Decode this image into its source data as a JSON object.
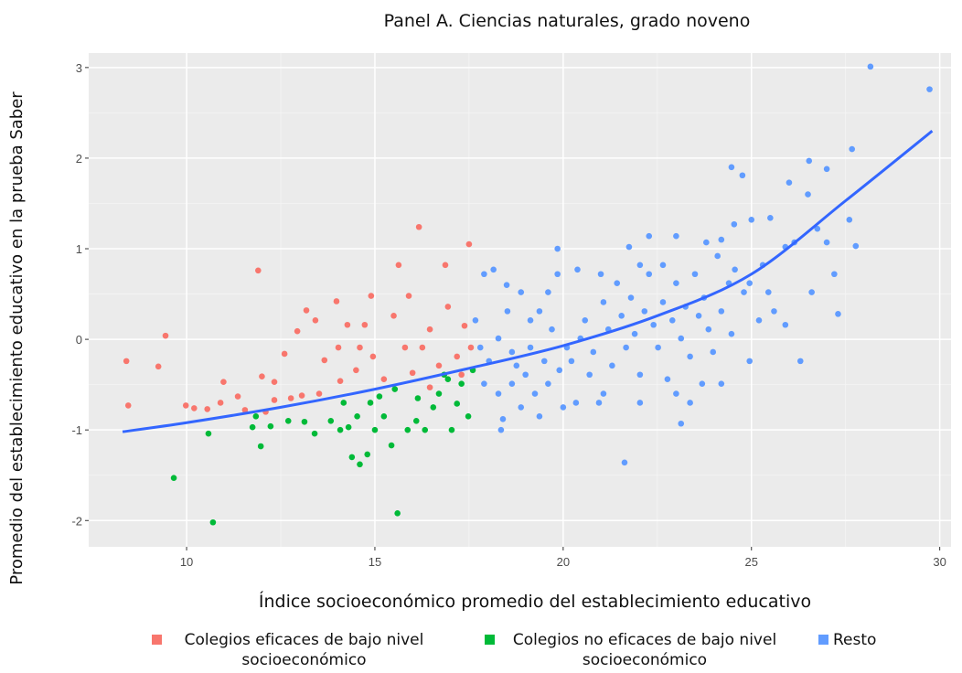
{
  "chart_data": {
    "type": "scatter",
    "title": "Panel A. Ciencias naturales, grado noveno",
    "x_label": "Índice socioeconómico promedio del establecimiento educativo",
    "y_label": "Promedio del establecimiento educativo en la prueba Saber",
    "xlim": [
      7.4,
      30.3
    ],
    "ylim": [
      -2.29,
      3.16
    ],
    "xticks": [
      10,
      15,
      20,
      25,
      30
    ],
    "yticks": [
      -2,
      -1,
      0,
      1,
      2,
      3
    ],
    "grid": true,
    "series": [
      {
        "name": "Colegios eficaces de bajo nivel socioeconómico",
        "color": "#f8766d",
        "x": [
          8.4,
          8.45,
          9.44,
          9.25,
          9.98,
          10.2,
          10.55,
          10.9,
          10.98,
          11.9,
          11.36,
          12.0,
          12.33,
          12.77,
          12.6,
          12.94,
          13.18,
          13.42,
          13.66,
          13.98,
          14.03,
          14.27,
          14.5,
          14.6,
          14.9,
          14.95,
          15.24,
          15.5,
          15.63,
          15.9,
          16.17,
          16.26,
          16.46,
          16.7,
          16.87,
          16.94,
          17.18,
          17.38,
          17.5,
          17.55,
          13.06,
          13.52,
          14.08,
          12.33,
          12.1,
          11.55,
          14.73,
          15.8,
          16.0,
          16.46,
          17.3
        ],
        "y": [
          -0.24,
          -0.73,
          0.04,
          -0.3,
          -0.73,
          -0.76,
          -0.77,
          -0.7,
          -0.47,
          0.76,
          -0.63,
          -0.41,
          -0.47,
          -0.65,
          -0.16,
          0.09,
          0.32,
          0.21,
          -0.23,
          0.42,
          -0.09,
          0.16,
          -0.34,
          -0.09,
          0.48,
          -0.19,
          -0.44,
          0.26,
          0.82,
          0.48,
          1.24,
          -0.09,
          0.11,
          -0.29,
          0.82,
          0.36,
          -0.19,
          0.15,
          1.05,
          -0.09,
          -0.62,
          -0.6,
          -0.46,
          -0.67,
          -0.8,
          -0.78,
          0.16,
          -0.09,
          -0.37,
          -0.53,
          -0.39
        ]
      },
      {
        "name": "Colegios no eficaces de bajo nivel socioeconómico",
        "color": "#00ba38",
        "x": [
          9.66,
          10.7,
          10.58,
          11.75,
          11.97,
          12.23,
          11.84,
          13.13,
          13.4,
          13.83,
          14.17,
          14.3,
          14.39,
          14.6,
          14.8,
          14.88,
          15.0,
          15.12,
          15.24,
          15.44,
          15.53,
          15.6,
          15.87,
          16.14,
          16.33,
          16.55,
          16.7,
          16.94,
          17.04,
          17.18,
          17.3,
          17.48,
          17.6,
          16.84,
          16.1,
          14.53,
          14.08,
          12.7
        ],
        "y": [
          -1.53,
          -2.02,
          -1.04,
          -0.97,
          -1.18,
          -0.96,
          -0.85,
          -0.91,
          -1.04,
          -0.9,
          -0.7,
          -0.97,
          -1.3,
          -1.38,
          -1.27,
          -0.7,
          -1.0,
          -0.63,
          -0.85,
          -1.17,
          -0.55,
          -1.92,
          -1.0,
          -0.65,
          -1.0,
          -0.75,
          -0.6,
          -0.44,
          -1.0,
          -0.71,
          -0.49,
          -0.85,
          -0.34,
          -0.39,
          -0.9,
          -0.85,
          -1.0,
          -0.9
        ]
      },
      {
        "name": "Resto",
        "color": "#619cff",
        "x": [
          28.16,
          29.73,
          27.67,
          24.47,
          24.76,
          26.53,
          27.0,
          26.0,
          26.5,
          25.0,
          25.5,
          27.6,
          27.77,
          24.54,
          19.85,
          20.38,
          21.75,
          22.28,
          23.0,
          23.8,
          24.2,
          27.2,
          26.6,
          27.3,
          26.3,
          25.9,
          25.6,
          21.63,
          23.13,
          23.69,
          24.2,
          18.4,
          18.35,
          17.9,
          18.15,
          18.5,
          18.88,
          19.37,
          17.67,
          17.8,
          18.03,
          18.28,
          18.64,
          18.76,
          19.0,
          19.13,
          19.25,
          19.5,
          19.6,
          19.7,
          19.9,
          20.1,
          20.22,
          20.34,
          20.46,
          20.58,
          20.7,
          20.8,
          20.95,
          21.07,
          21.2,
          21.3,
          21.43,
          21.55,
          21.67,
          21.8,
          21.9,
          22.04,
          22.16,
          22.28,
          22.4,
          22.52,
          22.65,
          22.77,
          22.9,
          23.0,
          23.13,
          23.25,
          23.37,
          23.5,
          23.6,
          23.74,
          23.86,
          23.98,
          24.1,
          24.2,
          24.4,
          24.56,
          24.8,
          24.95,
          25.2,
          25.3,
          25.45,
          23.37,
          23.0,
          22.04,
          21.07,
          20.0,
          19.37,
          18.88,
          18.28,
          17.9,
          18.64,
          19.6,
          19.85,
          19.13,
          18.52,
          21.0,
          22.04,
          22.65,
          25.9,
          26.14,
          26.75,
          27.0,
          24.95,
          24.47
        ],
        "y": [
          3.01,
          2.76,
          2.1,
          1.9,
          1.81,
          1.97,
          1.88,
          1.73,
          1.6,
          1.32,
          1.34,
          1.32,
          1.03,
          1.27,
          1.0,
          0.77,
          1.02,
          1.14,
          1.14,
          1.07,
          1.1,
          0.72,
          0.52,
          0.28,
          -0.24,
          0.16,
          0.31,
          -1.36,
          -0.93,
          -0.49,
          -0.49,
          -0.88,
          -1.0,
          0.72,
          0.77,
          0.6,
          0.52,
          0.31,
          0.21,
          -0.09,
          -0.24,
          0.01,
          -0.14,
          -0.29,
          -0.39,
          -0.09,
          -0.6,
          -0.24,
          -0.49,
          0.11,
          -0.34,
          -0.09,
          -0.24,
          -0.7,
          0.01,
          0.21,
          -0.39,
          -0.14,
          -0.7,
          0.41,
          0.11,
          -0.29,
          0.62,
          0.26,
          -0.09,
          0.46,
          0.06,
          -0.39,
          0.31,
          0.72,
          0.16,
          -0.09,
          0.41,
          -0.44,
          0.21,
          0.62,
          0.01,
          0.36,
          -0.19,
          0.72,
          0.26,
          0.46,
          0.11,
          -0.14,
          0.92,
          0.31,
          0.62,
          0.77,
          0.52,
          0.62,
          0.21,
          0.82,
          0.52,
          -0.7,
          -0.6,
          -0.7,
          -0.6,
          -0.75,
          -0.85,
          -0.75,
          -0.6,
          -0.49,
          -0.49,
          0.52,
          0.72,
          0.21,
          0.31,
          0.72,
          0.82,
          0.82,
          1.02,
          1.07,
          1.22,
          1.07,
          -0.24,
          0.06
        ]
      }
    ],
    "trend": {
      "color": "#3366ff",
      "x": [
        8.3,
        10,
        12.5,
        15,
        17.5,
        20,
        22.5,
        25,
        27.5,
        29.8
      ],
      "y": [
        -1.02,
        -0.92,
        -0.75,
        -0.55,
        -0.32,
        -0.07,
        0.26,
        0.72,
        1.53,
        2.3
      ]
    }
  }
}
